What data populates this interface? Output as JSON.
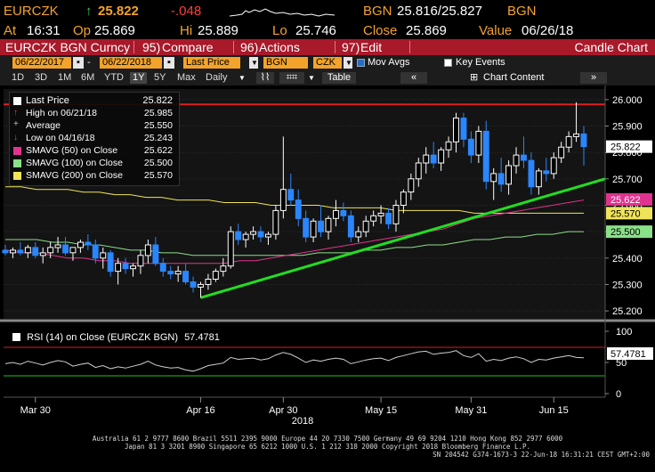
{
  "header": {
    "ticker": "EURCZK",
    "arrow": "↑",
    "last": "25.822",
    "change": "-.048",
    "source_label": "BGN",
    "bid_ask": "25.816/25.827",
    "source_label2": "BGN",
    "at_label": "At",
    "time": "16:31",
    "op_label": "Op",
    "open": "25.869",
    "hi_label": "Hi",
    "high": "25.889",
    "lo_label": "Lo",
    "low": "25.746",
    "close_label": "Close",
    "close": "25.869",
    "value_label": "Value",
    "value_date": "06/26/18"
  },
  "titlebar": {
    "security": "EURCZK BGN Curncy",
    "compare_num": "95)",
    "compare": "Compare",
    "actions_num": "96)",
    "actions": "Actions",
    "edit_num": "97)",
    "edit": "Edit",
    "chart_type": "Candle Chart"
  },
  "controls": {
    "start_date": "06/22/2017",
    "end_date": "06/22/2018",
    "price_field": "Last Price",
    "source": "BGN",
    "currency": "CZK",
    "mov_avgs_label": "Mov Avgs",
    "key_events_label": "Key Events",
    "ranges": [
      "1D",
      "3D",
      "1M",
      "6M",
      "YTD",
      "1Y",
      "5Y",
      "Max"
    ],
    "selected_range": "1Y",
    "period": "Daily",
    "table_label": "Table",
    "chart_content": "Chart Content"
  },
  "legend": {
    "last_price": {
      "label": "Last Price",
      "value": "25.822"
    },
    "high": {
      "label": "High on 06/21/18",
      "value": "25.985"
    },
    "average": {
      "label": "Average",
      "value": "25.550"
    },
    "low": {
      "label": "Low on 04/16/18",
      "value": "25.243"
    },
    "sma50": {
      "label": "SMAVG (50) on Close",
      "value": "25.622",
      "color": "#e0338f"
    },
    "sma100": {
      "label": "SMAVG (100) on Close",
      "value": "25.500",
      "color": "#8be08a"
    },
    "sma200": {
      "label": "SMAVG (200) on Close",
      "value": "25.570",
      "color": "#efe35a"
    }
  },
  "price_axis": {
    "ticks": [
      "26.000",
      "25.900",
      "25.800",
      "25.700",
      "25.600",
      "25.500",
      "25.400",
      "25.300",
      "25.200"
    ],
    "tags": [
      {
        "text": "25.822",
        "bg": "#ffffff",
        "fg": "#000000"
      },
      {
        "text": "25.622",
        "bg": "#e0338f",
        "fg": "#ffffff"
      },
      {
        "text": "25.570",
        "bg": "#efe35a",
        "fg": "#000000"
      },
      {
        "text": "25.500",
        "bg": "#8be08a",
        "fg": "#000000"
      }
    ]
  },
  "rsi": {
    "label": "RSI (14) on Close (EURCZK BGN)",
    "value": "57.4781",
    "ticks": [
      "100",
      "50",
      "0"
    ]
  },
  "x_axis": {
    "labels": [
      "Mar 30",
      "Apr 16",
      "Apr 30",
      "May 15",
      "May 31",
      "Jun 15"
    ],
    "year": "2018"
  },
  "chart_data": {
    "type": "candlestick",
    "y_range": [
      25.17,
      26.04
    ],
    "candles": [
      [
        25.43,
        25.45,
        25.41,
        25.42
      ],
      [
        25.42,
        25.44,
        25.4,
        25.43
      ],
      [
        25.43,
        25.46,
        25.41,
        25.42
      ],
      [
        25.42,
        25.45,
        25.4,
        25.44
      ],
      [
        25.44,
        25.46,
        25.4,
        25.41
      ],
      [
        25.41,
        25.44,
        25.38,
        25.42
      ],
      [
        25.42,
        25.46,
        25.4,
        25.44
      ],
      [
        25.44,
        25.48,
        25.42,
        25.45
      ],
      [
        25.45,
        25.48,
        25.41,
        25.42
      ],
      [
        25.42,
        25.44,
        25.39,
        25.44
      ],
      [
        25.44,
        25.47,
        25.42,
        25.46
      ],
      [
        25.46,
        25.49,
        25.43,
        25.45
      ],
      [
        25.45,
        25.47,
        25.38,
        25.4
      ],
      [
        25.4,
        25.44,
        25.36,
        25.42
      ],
      [
        25.42,
        25.43,
        25.33,
        25.35
      ],
      [
        25.35,
        25.4,
        25.3,
        25.38
      ],
      [
        25.38,
        25.4,
        25.34,
        25.36
      ],
      [
        25.36,
        25.38,
        25.33,
        25.37
      ],
      [
        25.37,
        25.43,
        25.34,
        25.41
      ],
      [
        25.41,
        25.47,
        25.38,
        25.45
      ],
      [
        25.45,
        25.48,
        25.37,
        25.38
      ],
      [
        25.38,
        25.4,
        25.33,
        25.35
      ],
      [
        25.35,
        25.37,
        25.32,
        25.34
      ],
      [
        25.34,
        25.37,
        25.31,
        25.35
      ],
      [
        25.35,
        25.38,
        25.3,
        25.31
      ],
      [
        25.31,
        25.33,
        25.27,
        25.29
      ],
      [
        25.29,
        25.31,
        25.25,
        25.3
      ],
      [
        25.3,
        25.34,
        25.28,
        25.32
      ],
      [
        25.32,
        25.36,
        25.31,
        25.35
      ],
      [
        25.35,
        25.4,
        25.33,
        25.37
      ],
      [
        25.37,
        25.52,
        25.36,
        25.5
      ],
      [
        25.5,
        25.53,
        25.45,
        25.47
      ],
      [
        25.47,
        25.5,
        25.44,
        25.49
      ],
      [
        25.49,
        25.52,
        25.47,
        25.5
      ],
      [
        25.5,
        25.52,
        25.46,
        25.48
      ],
      [
        25.48,
        25.5,
        25.45,
        25.49
      ],
      [
        25.49,
        25.6,
        25.47,
        25.58
      ],
      [
        25.58,
        25.86,
        25.55,
        25.66
      ],
      [
        25.66,
        25.72,
        25.6,
        25.62
      ],
      [
        25.62,
        25.66,
        25.52,
        25.55
      ],
      [
        25.55,
        25.58,
        25.46,
        25.48
      ],
      [
        25.48,
        25.55,
        25.46,
        25.54
      ],
      [
        25.54,
        25.6,
        25.48,
        25.5
      ],
      [
        25.5,
        25.56,
        25.47,
        25.55
      ],
      [
        25.55,
        25.62,
        25.52,
        25.58
      ],
      [
        25.58,
        25.61,
        25.54,
        25.56
      ],
      [
        25.56,
        25.58,
        25.46,
        25.48
      ],
      [
        25.48,
        25.52,
        25.46,
        25.5
      ],
      [
        25.5,
        25.56,
        25.48,
        25.54
      ],
      [
        25.54,
        25.58,
        25.52,
        25.56
      ],
      [
        25.56,
        25.6,
        25.53,
        25.57
      ],
      [
        25.57,
        25.59,
        25.51,
        25.53
      ],
      [
        25.53,
        25.62,
        25.5,
        25.6
      ],
      [
        25.6,
        25.66,
        25.57,
        25.65
      ],
      [
        25.65,
        25.72,
        25.62,
        25.7
      ],
      [
        25.7,
        25.78,
        25.67,
        25.76
      ],
      [
        25.76,
        25.82,
        25.72,
        25.79
      ],
      [
        25.79,
        25.84,
        25.74,
        25.76
      ],
      [
        25.76,
        25.82,
        25.73,
        25.81
      ],
      [
        25.81,
        25.86,
        25.78,
        25.84
      ],
      [
        25.84,
        25.95,
        25.8,
        25.93
      ],
      [
        25.93,
        25.95,
        25.82,
        25.85
      ],
      [
        25.85,
        25.88,
        25.76,
        25.79
      ],
      [
        25.79,
        25.9,
        25.76,
        25.88
      ],
      [
        25.88,
        25.92,
        25.66,
        25.69
      ],
      [
        25.69,
        25.74,
        25.62,
        25.72
      ],
      [
        25.72,
        25.78,
        25.65,
        25.68
      ],
      [
        25.68,
        25.77,
        25.64,
        25.75
      ],
      [
        25.75,
        25.82,
        25.72,
        25.79
      ],
      [
        25.79,
        25.86,
        25.74,
        25.77
      ],
      [
        25.77,
        25.8,
        25.64,
        25.67
      ],
      [
        25.67,
        25.74,
        25.64,
        25.73
      ],
      [
        25.73,
        25.78,
        25.69,
        25.72
      ],
      [
        25.72,
        25.8,
        25.7,
        25.78
      ],
      [
        25.78,
        25.84,
        25.76,
        25.82
      ],
      [
        25.82,
        25.88,
        25.8,
        25.86
      ],
      [
        25.86,
        25.99,
        25.84,
        25.87
      ],
      [
        25.87,
        25.9,
        25.75,
        25.822
      ]
    ],
    "rsi_values": [
      48,
      50,
      47,
      52,
      49,
      46,
      50,
      53,
      51,
      44,
      47,
      49,
      42,
      45,
      40,
      43,
      41,
      44,
      47,
      52,
      46,
      43,
      41,
      42,
      38,
      36,
      40,
      45,
      47,
      49,
      58,
      55,
      56,
      57,
      54,
      56,
      62,
      66,
      63,
      57,
      50,
      54,
      52,
      55,
      57,
      55,
      48,
      51,
      54,
      56,
      57,
      53,
      58,
      61,
      64,
      67,
      68,
      63,
      65,
      66,
      69,
      61,
      58,
      64,
      52,
      55,
      53,
      57,
      59,
      56,
      50,
      55,
      54,
      57,
      59,
      61,
      58,
      57.48
    ],
    "sma50": [
      25.43,
      25.42,
      25.42,
      25.41,
      25.4,
      25.4,
      25.39,
      25.39,
      25.38,
      25.38,
      25.38,
      25.38,
      25.38,
      25.38,
      25.38,
      25.39,
      25.39,
      25.4,
      25.41,
      25.42,
      25.43,
      25.44,
      25.45,
      25.46,
      25.47,
      25.48,
      25.49,
      25.5,
      25.51,
      25.53,
      25.55,
      25.56,
      25.57,
      25.58,
      25.59,
      25.6,
      25.61,
      25.62
    ],
    "sma100": [
      25.47,
      25.47,
      25.47,
      25.46,
      25.46,
      25.45,
      25.45,
      25.44,
      25.43,
      25.43,
      25.42,
      25.42,
      25.41,
      25.41,
      25.41,
      25.41,
      25.41,
      25.41,
      25.41,
      25.41,
      25.42,
      25.42,
      25.42,
      25.43,
      25.43,
      25.44,
      25.44,
      25.45,
      25.45,
      25.46,
      25.47,
      25.47,
      25.48,
      25.48,
      25.49,
      25.49,
      25.5,
      25.5
    ],
    "sma200": [
      25.67,
      25.67,
      25.66,
      25.66,
      25.66,
      25.65,
      25.65,
      25.64,
      25.64,
      25.63,
      25.63,
      25.62,
      25.62,
      25.62,
      25.61,
      25.61,
      25.61,
      25.6,
      25.6,
      25.6,
      25.6,
      25.59,
      25.59,
      25.59,
      25.59,
      25.58,
      25.58,
      25.58,
      25.58,
      25.58,
      25.57,
      25.57,
      25.57,
      25.57,
      25.57,
      25.57,
      25.57,
      25.57
    ]
  },
  "footer": {
    "line1": "Australia 61 2 9777 8600 Brazil 5511 2395 9000 Europe 44 20 7330 7500 Germany 49 69 9204 1210 Hong Kong 852 2977 6000",
    "line2": "Japan 81 3 3201 8900        Singapore 65 6212 1000        U.S. 1 212 318 2000        Copyright 2018 Bloomberg Finance L.P.",
    "line3": "SN 204542 G374-1673-3 22-Jun-18 16:31:21 CEST GMT+2:00"
  }
}
